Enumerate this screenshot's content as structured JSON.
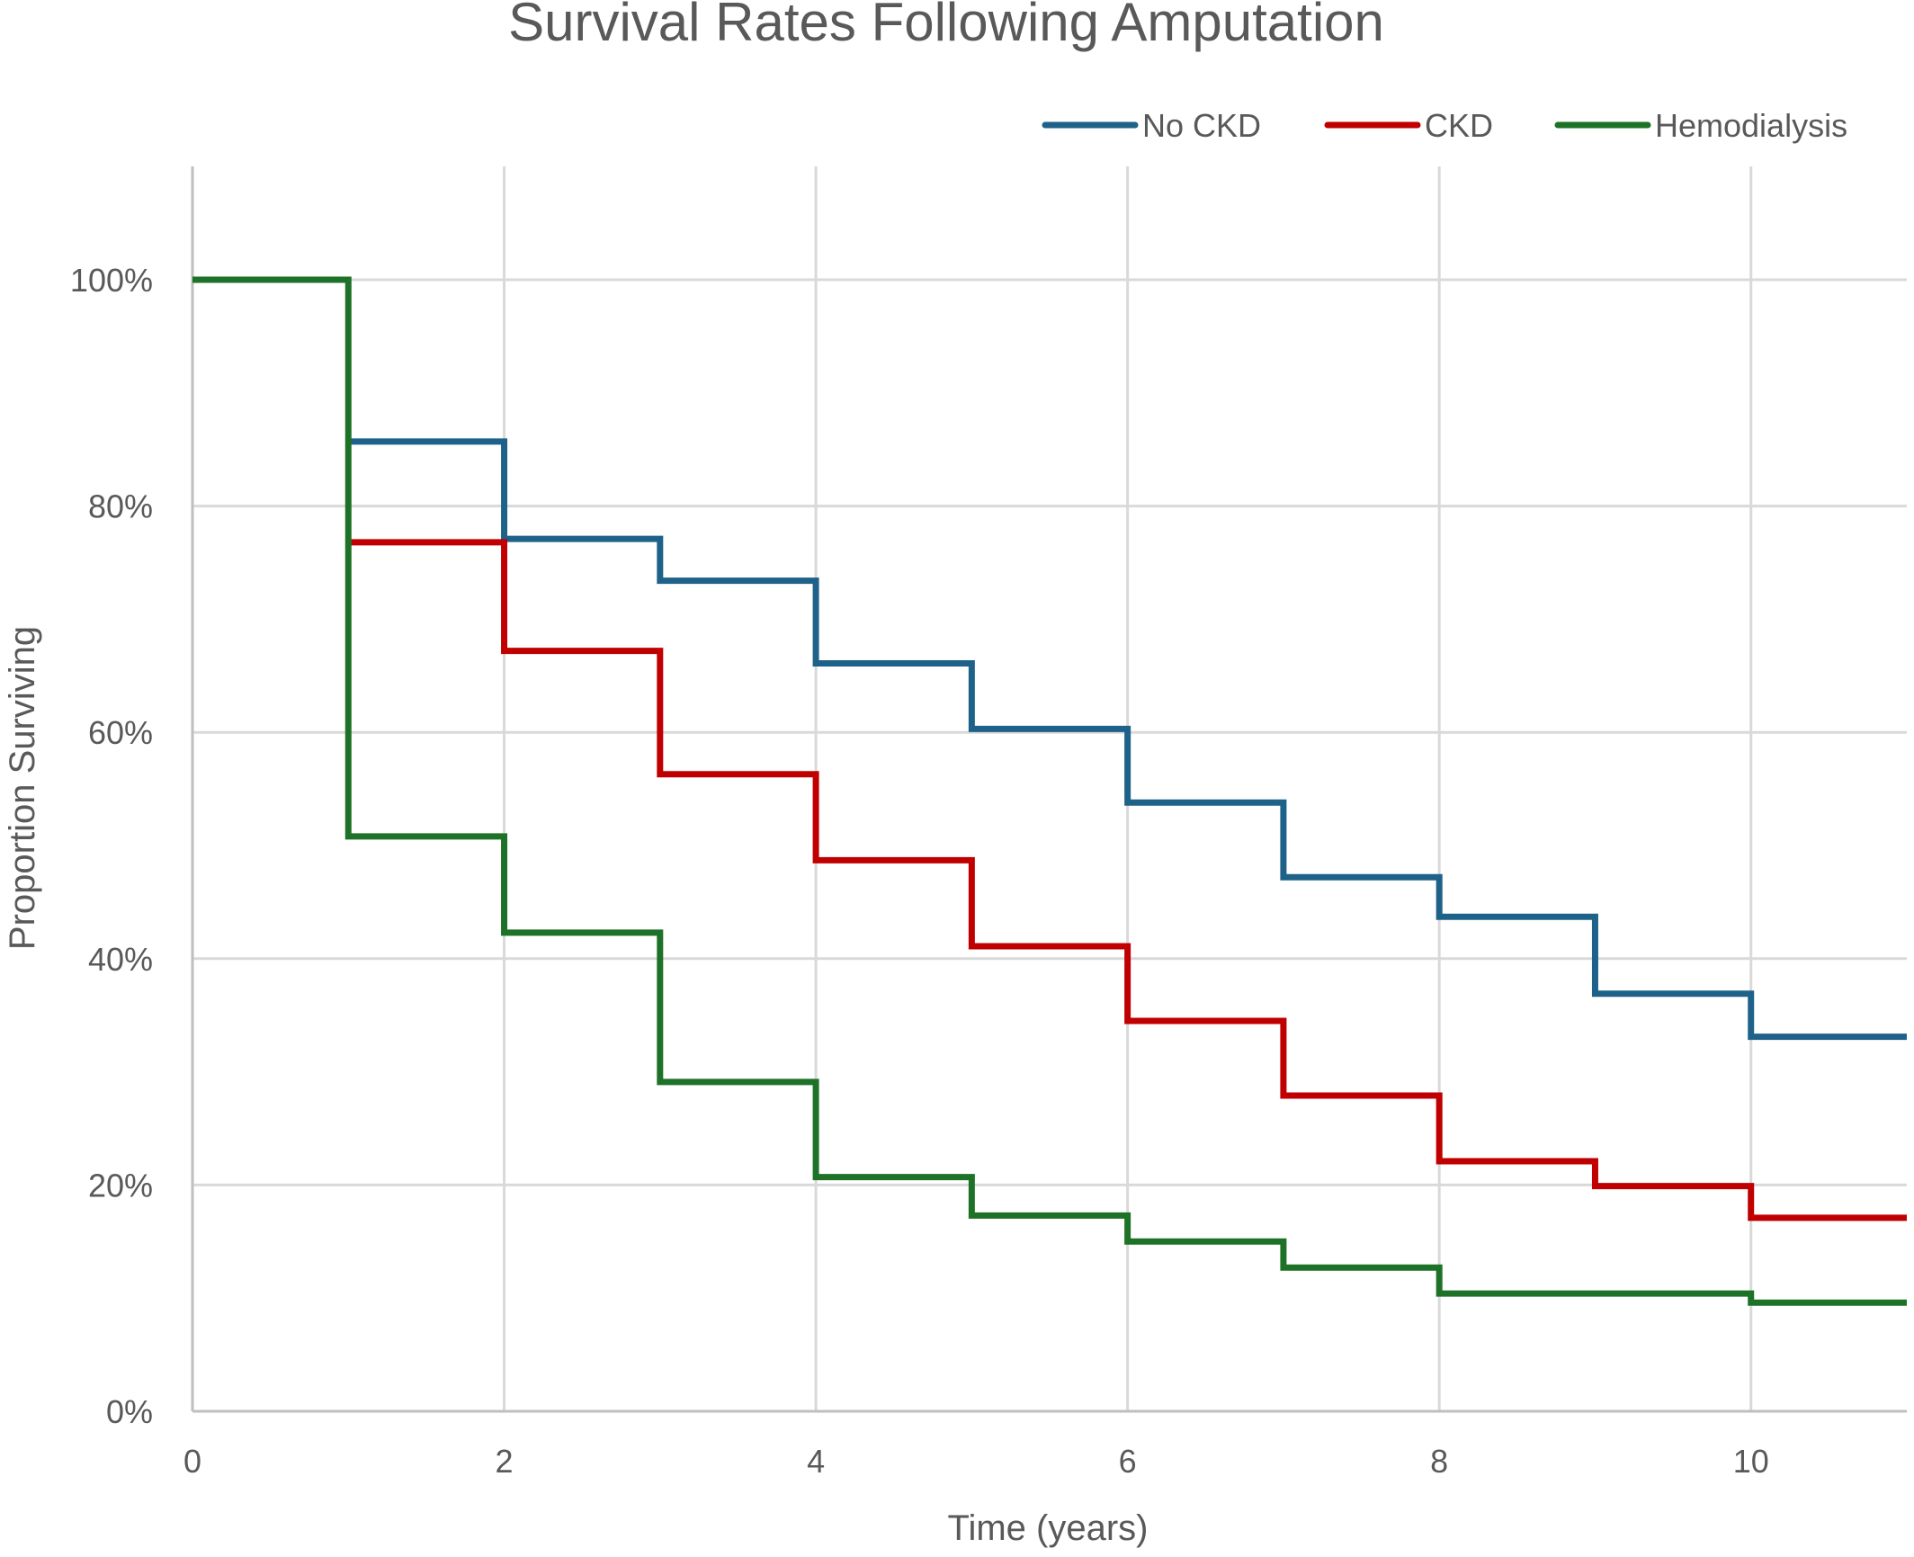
{
  "chart_data": {
    "type": "line",
    "step": true,
    "title": "Survival Rates Following Amputation",
    "xlabel": "Time (years)",
    "ylabel": "Proportion Surviving",
    "xlim": [
      0,
      11
    ],
    "ylim": [
      0,
      1
    ],
    "x_ticks": [
      0,
      2,
      4,
      6,
      8,
      10
    ],
    "y_ticks": [
      0,
      0.2,
      0.4,
      0.6,
      0.8,
      1.0
    ],
    "y_tick_labels": [
      "0%",
      "20%",
      "40%",
      "60%",
      "80%",
      "100%"
    ],
    "grid": true,
    "legend_position": "top-right",
    "series": [
      {
        "name": "No CKD",
        "color": "#1f6289",
        "points": [
          [
            1,
            0.857
          ],
          [
            2,
            0.771
          ],
          [
            3,
            0.734
          ],
          [
            4,
            0.661
          ],
          [
            5,
            0.603
          ],
          [
            6,
            0.538
          ],
          [
            7,
            0.472
          ],
          [
            8,
            0.437
          ],
          [
            9,
            0.369
          ],
          [
            10,
            0.331
          ],
          [
            11,
            0.331
          ]
        ]
      },
      {
        "name": "CKD",
        "color": "#c00000",
        "points": [
          [
            1,
            0.768
          ],
          [
            2,
            0.672
          ],
          [
            3,
            0.563
          ],
          [
            4,
            0.487
          ],
          [
            5,
            0.411
          ],
          [
            6,
            0.345
          ],
          [
            7,
            0.279
          ],
          [
            8,
            0.221
          ],
          [
            9,
            0.199
          ],
          [
            10,
            0.171
          ],
          [
            11,
            0.171
          ]
        ]
      },
      {
        "name": "Hemodialysis",
        "color": "#1e7227",
        "points": [
          [
            0,
            1.0
          ],
          [
            1,
            0.508
          ],
          [
            2,
            0.423
          ],
          [
            3,
            0.291
          ],
          [
            4,
            0.207
          ],
          [
            5,
            0.173
          ],
          [
            6,
            0.15
          ],
          [
            7,
            0.127
          ],
          [
            8,
            0.104
          ],
          [
            9,
            0.104
          ],
          [
            10,
            0.096
          ],
          [
            11,
            0.096
          ]
        ]
      }
    ]
  }
}
